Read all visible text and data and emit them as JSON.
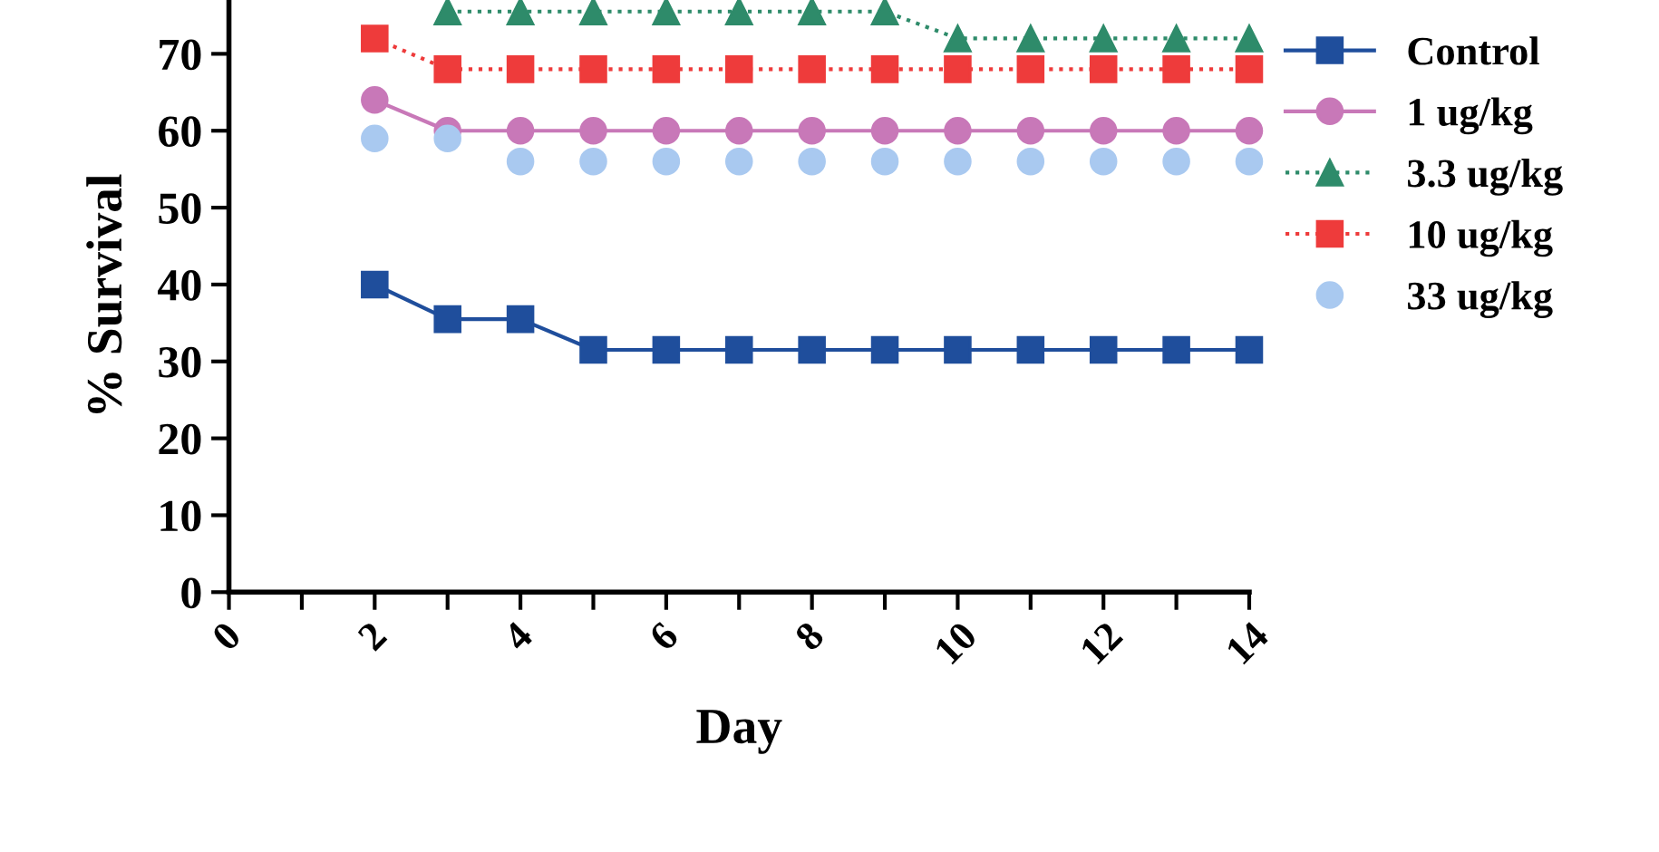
{
  "chart_data": {
    "type": "line",
    "xlabel": "Day",
    "ylabel": "% Survival",
    "xlim": [
      0,
      14
    ],
    "ylim": [
      0,
      77
    ],
    "xticks": [
      0,
      {
        "value": 1,
        "label": null
      },
      2,
      {
        "value": 3,
        "label": null
      },
      4,
      {
        "value": 5,
        "label": null
      },
      6,
      {
        "value": 7,
        "label": null
      },
      8,
      {
        "value": 9,
        "label": null
      },
      10,
      {
        "value": 11,
        "label": null
      },
      12,
      {
        "value": 13,
        "label": null
      },
      14
    ],
    "yticks": [
      0,
      10,
      20,
      30,
      40,
      50,
      60,
      70
    ],
    "grid": false,
    "legend": "right",
    "x": [
      2,
      3,
      4,
      5,
      6,
      7,
      8,
      9,
      10,
      11,
      12,
      13,
      14
    ],
    "series": [
      {
        "name": "Control",
        "color": "#1f4e9c",
        "marker": "square",
        "line_style": "solid",
        "values": [
          40,
          35.5,
          35.5,
          31.5,
          31.5,
          31.5,
          31.5,
          31.5,
          31.5,
          31.5,
          31.5,
          31.5,
          31.5
        ]
      },
      {
        "name": "1 ug/kg",
        "color": "#c878b8",
        "marker": "circle",
        "line_style": "solid",
        "values": [
          64,
          60,
          60,
          60,
          60,
          60,
          60,
          60,
          60,
          60,
          60,
          60,
          60
        ]
      },
      {
        "name": "3.3 ug/kg",
        "color": "#2e8b6a",
        "marker": "triangle",
        "line_style": "dotted",
        "values": [
          null,
          75.5,
          75.5,
          75.5,
          75.5,
          75.5,
          75.5,
          75.5,
          72,
          72,
          72,
          72,
          72
        ]
      },
      {
        "name": "10 ug/kg",
        "color": "#ee3b3b",
        "marker": "square",
        "line_style": "dotted",
        "values": [
          72,
          68,
          68,
          68,
          68,
          68,
          68,
          68,
          68,
          68,
          68,
          68,
          68
        ]
      },
      {
        "name": "33 ug/kg",
        "type": "scatter",
        "color": "#a9c9f0",
        "marker": "circle",
        "values": [
          59,
          59,
          56,
          56,
          56,
          56,
          56,
          56,
          56,
          56,
          56,
          56,
          56
        ]
      }
    ]
  }
}
